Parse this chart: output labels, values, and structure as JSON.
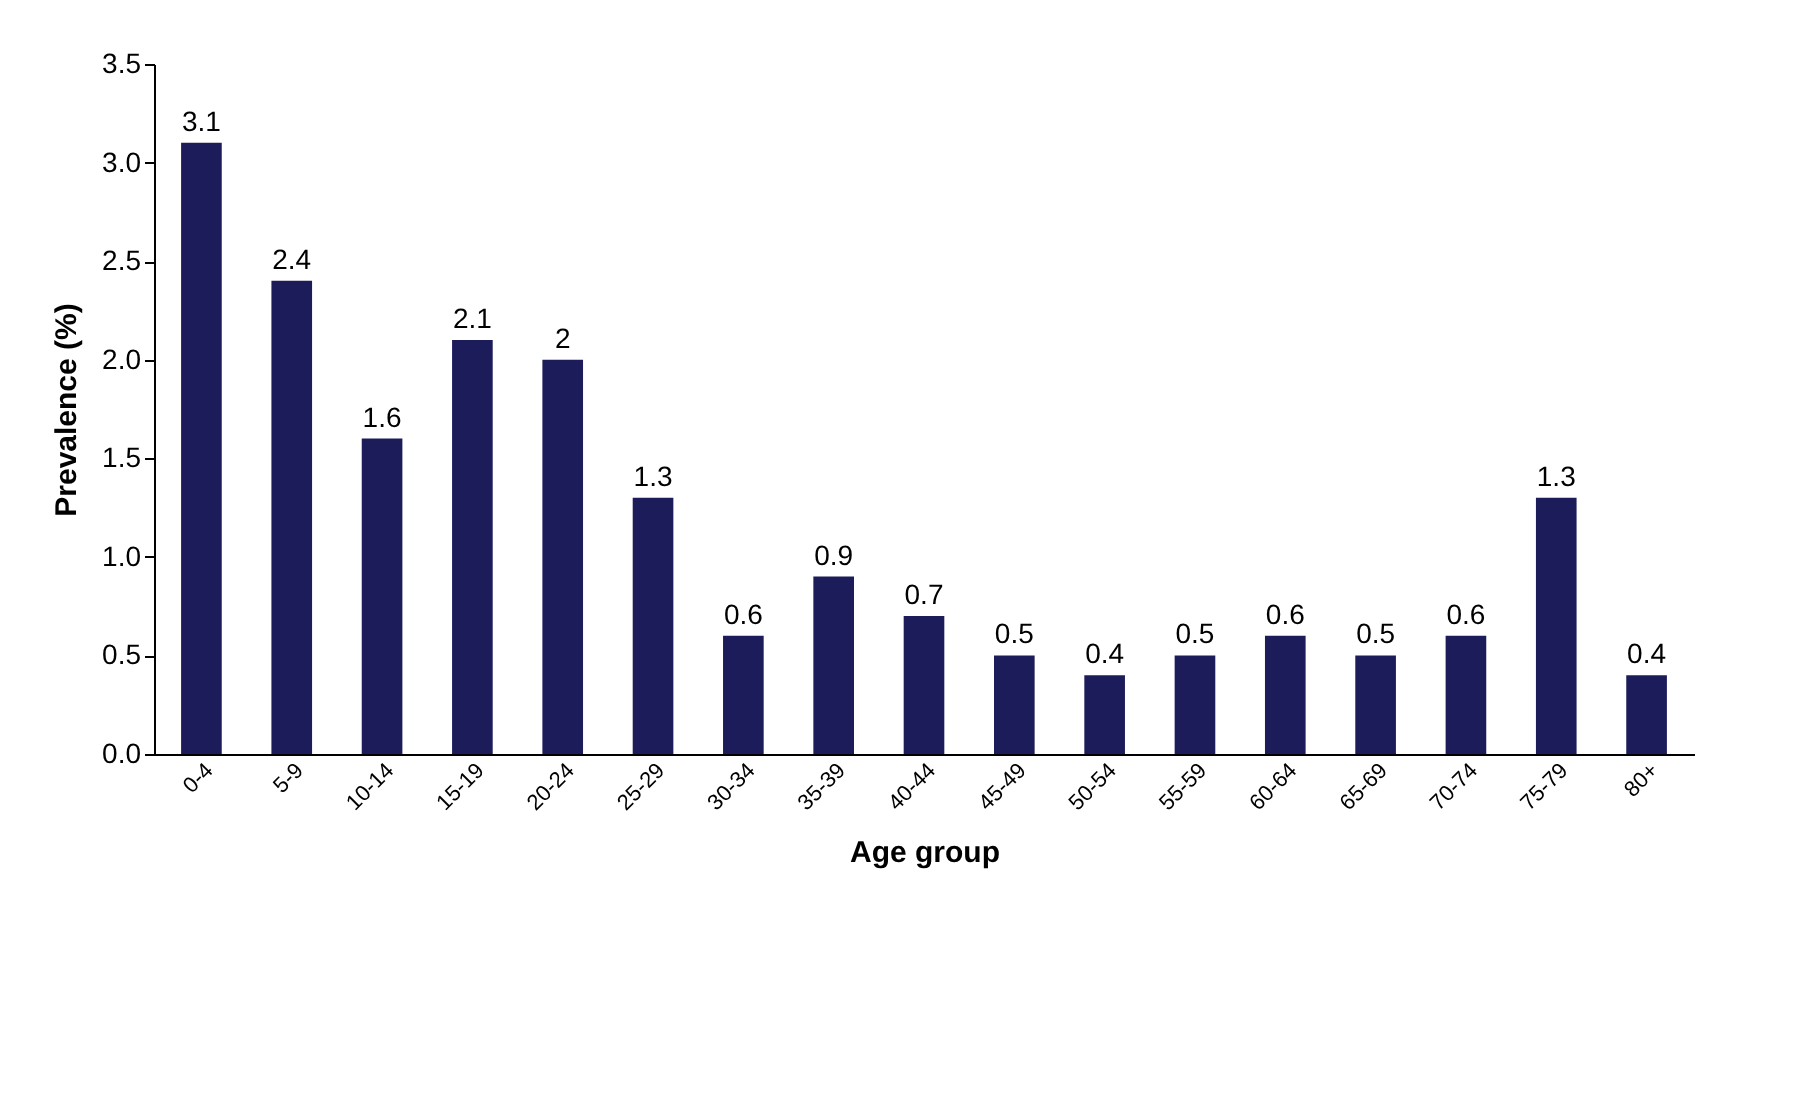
{
  "chart_data": {
    "type": "bar",
    "xlabel": "Age group",
    "ylabel": "Prevalence (%)",
    "categories": [
      "0-4",
      "5-9",
      "10-14",
      "15-19",
      "20-24",
      "25-29",
      "30-34",
      "35-39",
      "40-44",
      "45-49",
      "50-54",
      "55-59",
      "60-64",
      "65-69",
      "70-74",
      "75-79",
      "80+"
    ],
    "values": [
      3.1,
      2.4,
      1.6,
      2.1,
      2,
      1.3,
      0.6,
      0.9,
      0.7,
      0.5,
      0.4,
      0.5,
      0.6,
      0.5,
      0.6,
      1.3,
      0.4
    ],
    "color": "#1c1c5a",
    "ylim": [
      0,
      3.5
    ],
    "yticks": [
      {
        "value": 0,
        "label": "0.0"
      },
      0.5,
      {
        "value": 1,
        "label": "1.0"
      },
      1.5,
      {
        "value": 2,
        "label": "2.0"
      },
      2.5,
      {
        "value": 3,
        "label": "3.0"
      },
      3.5
    ],
    "grid": false,
    "data_labels": true
  }
}
